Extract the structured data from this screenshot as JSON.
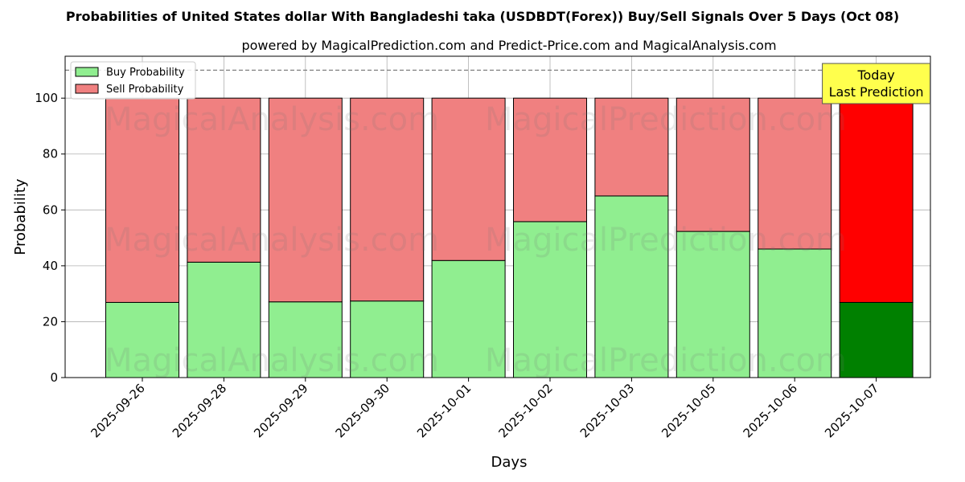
{
  "chart_data": {
    "type": "bar",
    "stacked": true,
    "title": "Probabilities of United States dollar With Bangladeshi taka (USDBDT(Forex)) Buy/Sell Signals Over 5 Days (Oct 08)",
    "subtitle": "powered by MagicalPrediction.com and Predict-Price.com and MagicalAnalysis.com",
    "xlabel": "Days",
    "ylabel": "Probability",
    "ylim": [
      0,
      115
    ],
    "yticks": [
      "0",
      "20",
      "40",
      "60",
      "80",
      "100"
    ],
    "grid": true,
    "reference_line": 110,
    "legend_position": "top-left",
    "categories": [
      "2025-09-26",
      "2025-09-28",
      "2025-09-29",
      "2025-09-30",
      "2025-10-01",
      "2025-10-02",
      "2025-10-03",
      "2025-10-05",
      "2025-10-06",
      "2025-10-07"
    ],
    "series": [
      {
        "name": "Buy Probability",
        "color": "#90ee90",
        "highlight_color": "#008000",
        "values": [
          26.9,
          41.3,
          27.1,
          27.4,
          41.9,
          55.8,
          65.0,
          52.3,
          46.0,
          26.9
        ]
      },
      {
        "name": "Sell Probability",
        "color": "#f08080",
        "highlight_color": "#ff0000",
        "values": [
          73.1,
          58.7,
          72.9,
          72.6,
          58.1,
          44.2,
          35.0,
          47.7,
          54.0,
          73.1
        ]
      }
    ],
    "annotation": {
      "lines": [
        "Today",
        "Last Prediction"
      ],
      "background": "#ffff4d"
    },
    "watermarks": [
      "MagicalAnalysis.com",
      "MagicalPrediction.com"
    ]
  }
}
